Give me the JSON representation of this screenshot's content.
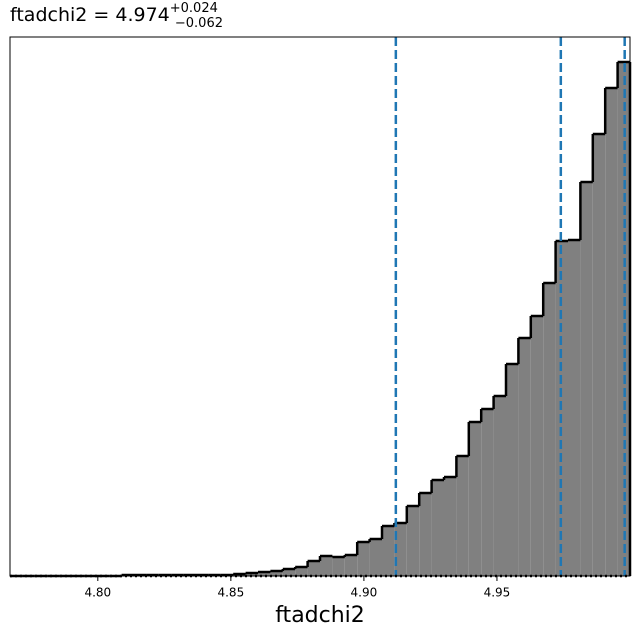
{
  "chart_data": {
    "type": "histogram",
    "title": "ftadchi2 = 4.974",
    "title_sup": "+0.024",
    "title_sub": "−0.062",
    "xlabel": "ftadchi2",
    "bins": [
      4.767,
      4.77166,
      4.77632,
      4.78098,
      4.78564,
      4.7903,
      4.79496,
      4.79962,
      4.80428,
      4.80894,
      4.8136,
      4.81826,
      4.82292,
      4.82758,
      4.83224,
      4.8369,
      4.84156,
      4.84622,
      4.85088,
      4.85554,
      4.8602,
      4.86486,
      4.86952,
      4.87418,
      4.87884,
      4.8835,
      4.88816,
      4.89282,
      4.89748,
      4.90214,
      4.9068,
      4.91146,
      4.91612,
      4.92078,
      4.92544,
      4.9301,
      4.93476,
      4.93942,
      4.94408,
      4.94874,
      4.9534,
      4.95806,
      4.96272,
      4.96738,
      4.97204,
      4.9767,
      4.98136,
      4.98602,
      4.99068,
      4.99534,
      5.0
    ],
    "values": [
      0,
      0,
      0,
      0,
      0,
      0,
      0,
      0,
      0,
      1,
      1,
      1,
      1,
      1,
      1,
      1,
      1,
      1,
      2,
      3,
      4,
      5,
      7,
      9,
      15,
      20,
      19,
      21,
      34,
      37,
      50,
      53,
      70,
      83,
      96,
      99,
      120,
      154,
      167,
      180,
      212,
      238,
      260,
      293,
      335,
      336,
      394,
      442,
      488,
      514
    ],
    "color": "#808080",
    "edgecolor": "#000000",
    "vlines": [
      4.912,
      4.974,
      4.998
    ],
    "vline_color": "#1f77b4",
    "hline": 0,
    "xlim": [
      4.767,
      5.0
    ],
    "ylim": [
      0,
      539
    ],
    "xticks": [
      {
        "value": 4.8,
        "label": "4.80"
      },
      {
        "value": 4.85,
        "label": "4.85"
      },
      {
        "value": 4.9,
        "label": "4.90"
      },
      {
        "value": 4.95,
        "label": "4.95"
      }
    ],
    "grid": false
  }
}
